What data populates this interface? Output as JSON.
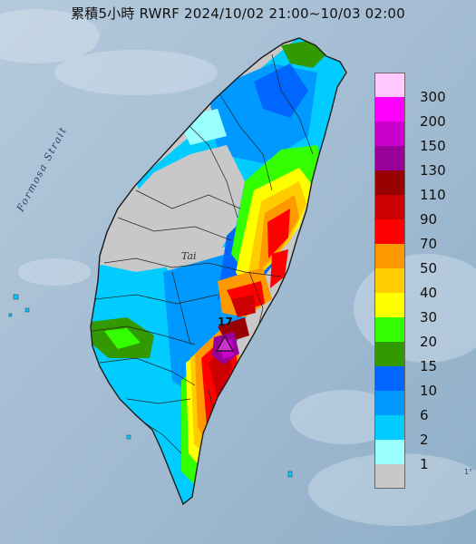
{
  "title": "累積5小時 RWRF 2024/10/02 21:00~10/03 02:00",
  "map_labels": {
    "strait": "Formosa Strait",
    "island": "Tai",
    "station_number": "17",
    "corner": "1°"
  },
  "legend": {
    "items": [
      {
        "label": "300",
        "color": "#ffc8ff"
      },
      {
        "label": "200",
        "color": "#ff00ff"
      },
      {
        "label": "150",
        "color": "#cc00cc"
      },
      {
        "label": "130",
        "color": "#990099"
      },
      {
        "label": "110",
        "color": "#990000"
      },
      {
        "label": "90",
        "color": "#cc0000"
      },
      {
        "label": "70",
        "color": "#ff0000"
      },
      {
        "label": "50",
        "color": "#ff9900"
      },
      {
        "label": "40",
        "color": "#ffcc00"
      },
      {
        "label": "30",
        "color": "#ffff00"
      },
      {
        "label": "20",
        "color": "#33ff00"
      },
      {
        "label": "15",
        "color": "#339900"
      },
      {
        "label": "10",
        "color": "#0066ff"
      },
      {
        "label": "6",
        "color": "#0099ff"
      },
      {
        "label": "2",
        "color": "#00ccff"
      },
      {
        "label": "1",
        "color": "#99ffff"
      },
      {
        "label": "",
        "color": "#c8c8c8"
      }
    ]
  },
  "colors": {
    "sea": "#9fb8cf",
    "cloud": "#d9e4ee",
    "no_rain": "#c8c8c8"
  }
}
